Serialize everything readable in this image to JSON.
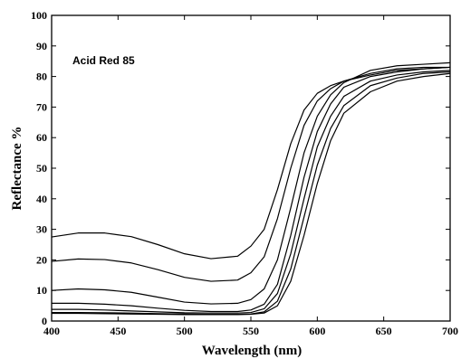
{
  "chart_data": {
    "type": "line",
    "title": "",
    "annotation": "Acid Red 85",
    "xlabel": "Wavelength (nm)",
    "ylabel": "Reflectance %",
    "xlim": [
      400,
      700
    ],
    "ylim": [
      0,
      100
    ],
    "xticks": [
      400,
      450,
      500,
      550,
      600,
      650,
      700
    ],
    "yticks": [
      0,
      10,
      20,
      30,
      40,
      50,
      60,
      70,
      80,
      90,
      100
    ],
    "grid": false,
    "legend": "none",
    "line_color": "#000000",
    "x": [
      400,
      420,
      440,
      460,
      480,
      500,
      520,
      540,
      550,
      560,
      570,
      580,
      590,
      600,
      610,
      620,
      640,
      660,
      680,
      700
    ],
    "series": [
      {
        "values": [
          27.5,
          28.8,
          28.8,
          27.6,
          25.0,
          22.0,
          20.4,
          21.2,
          24.5,
          30.0,
          43.0,
          58.0,
          69.0,
          74.5,
          77.0,
          78.5,
          81.0,
          82.5,
          83.0,
          83.0
        ]
      },
      {
        "values": [
          19.5,
          20.3,
          20.1,
          19.0,
          16.8,
          14.3,
          13.0,
          13.4,
          15.8,
          21.0,
          33.5,
          50.0,
          64.0,
          72.0,
          76.0,
          78.5,
          80.5,
          82.0,
          82.5,
          83.0
        ]
      },
      {
        "values": [
          10.0,
          10.5,
          10.2,
          9.4,
          7.8,
          6.2,
          5.6,
          5.8,
          7.0,
          10.5,
          20.0,
          37.0,
          55.0,
          67.0,
          74.0,
          78.0,
          82.0,
          83.5,
          84.0,
          84.5
        ]
      },
      {
        "values": [
          5.8,
          5.8,
          5.5,
          5.0,
          4.2,
          3.5,
          3.1,
          3.1,
          3.6,
          5.5,
          12.0,
          28.0,
          47.0,
          62.0,
          71.0,
          76.5,
          80.0,
          81.5,
          82.5,
          83.0
        ]
      },
      {
        "values": [
          3.8,
          3.8,
          3.6,
          3.3,
          3.0,
          2.7,
          2.6,
          2.6,
          2.8,
          4.0,
          9.0,
          22.0,
          40.0,
          57.0,
          67.0,
          73.5,
          78.5,
          80.5,
          81.5,
          82.0
        ]
      },
      {
        "values": [
          2.8,
          2.8,
          2.7,
          2.6,
          2.4,
          2.3,
          2.2,
          2.2,
          2.3,
          3.0,
          6.5,
          17.0,
          34.0,
          51.0,
          63.0,
          70.5,
          77.0,
          79.5,
          81.0,
          81.5
        ]
      },
      {
        "values": [
          2.5,
          2.5,
          2.4,
          2.3,
          2.2,
          2.1,
          2.1,
          2.1,
          2.2,
          2.6,
          5.0,
          13.0,
          28.0,
          45.0,
          59.0,
          68.0,
          75.0,
          78.5,
          80.0,
          81.0
        ]
      }
    ]
  }
}
